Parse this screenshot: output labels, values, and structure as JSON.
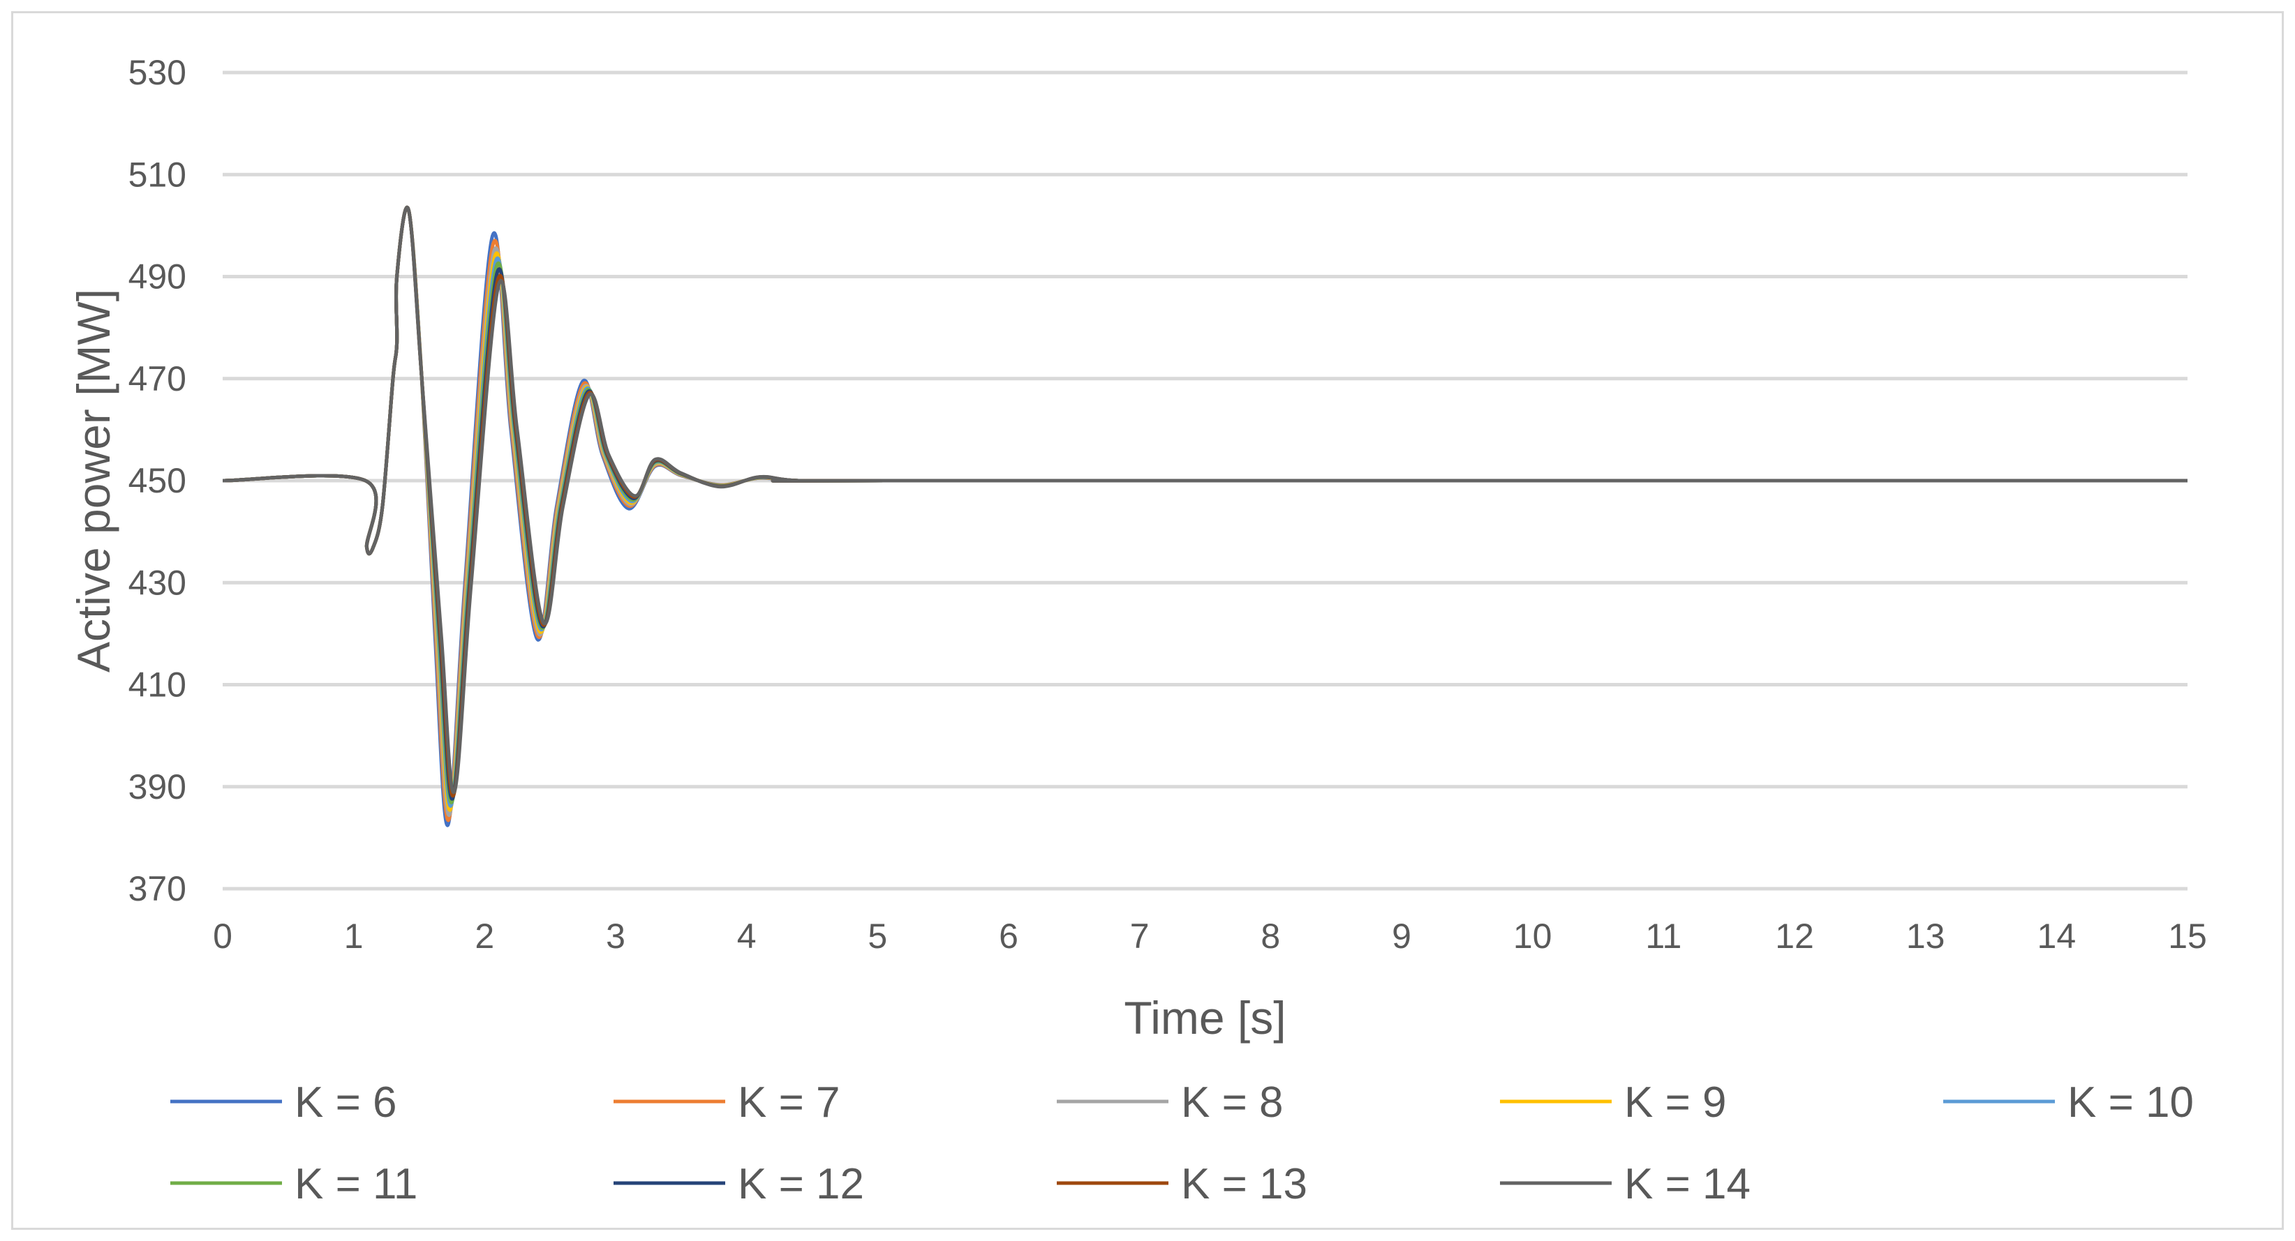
{
  "chart_data": {
    "type": "line",
    "title": "",
    "xlabel": "Time [s]",
    "ylabel": "Active power [MW]",
    "xlim": [
      0,
      15
    ],
    "ylim": [
      370,
      530
    ],
    "xticks": [
      0,
      1,
      2,
      3,
      4,
      5,
      6,
      7,
      8,
      9,
      10,
      11,
      12,
      13,
      14,
      15
    ],
    "yticks": [
      370,
      390,
      410,
      430,
      450,
      470,
      490,
      510,
      530
    ],
    "grid": "horizontal",
    "legend": "bottom",
    "series": [
      {
        "name": "K = 6",
        "color": "#4472c4",
        "first_peak": 503,
        "first_trough": 382.5,
        "second_peak": 498.0,
        "second_trough": 419.0,
        "third_peak": 469.5,
        "third_trough": 444.5,
        "final": 450
      },
      {
        "name": "K = 7",
        "color": "#ed7d31",
        "first_peak": 503,
        "first_trough": 383.5,
        "second_peak": 496.5,
        "second_trough": 419.5,
        "third_peak": 469.0,
        "third_trough": 445.0,
        "final": 450
      },
      {
        "name": "K = 8",
        "color": "#a5a5a5",
        "first_peak": 503,
        "first_trough": 384.5,
        "second_peak": 495.0,
        "second_trough": 420.0,
        "third_peak": 468.5,
        "third_trough": 445.3,
        "final": 450
      },
      {
        "name": "K = 9",
        "color": "#ffc000",
        "first_peak": 503,
        "first_trough": 385.5,
        "second_peak": 494.0,
        "second_trough": 420.5,
        "third_peak": 468.2,
        "third_trough": 445.6,
        "final": 450
      },
      {
        "name": "K = 10",
        "color": "#5b9bd5",
        "first_peak": 503,
        "first_trough": 386.3,
        "second_peak": 493.0,
        "second_trough": 421.0,
        "third_peak": 468.0,
        "third_trough": 445.9,
        "final": 450
      },
      {
        "name": "K = 11",
        "color": "#70ad47",
        "first_peak": 503,
        "first_trough": 387.0,
        "second_peak": 492.0,
        "second_trough": 421.3,
        "third_peak": 467.7,
        "third_trough": 446.2,
        "final": 450
      },
      {
        "name": "K = 12",
        "color": "#264478",
        "first_peak": 503,
        "first_trough": 387.7,
        "second_peak": 490.8,
        "second_trough": 421.6,
        "third_peak": 467.4,
        "third_trough": 446.5,
        "final": 450
      },
      {
        "name": "K = 13",
        "color": "#9e480e",
        "first_peak": 503,
        "first_trough": 388.3,
        "second_peak": 489.5,
        "second_trough": 421.9,
        "third_peak": 467.1,
        "third_trough": 446.8,
        "final": 450
      },
      {
        "name": "K = 14",
        "color": "#636363",
        "first_peak": 503,
        "first_trough": 389.0,
        "second_peak": 488.5,
        "second_trough": 422.2,
        "third_peak": 466.8,
        "third_trough": 447.0,
        "final": 450
      }
    ]
  }
}
